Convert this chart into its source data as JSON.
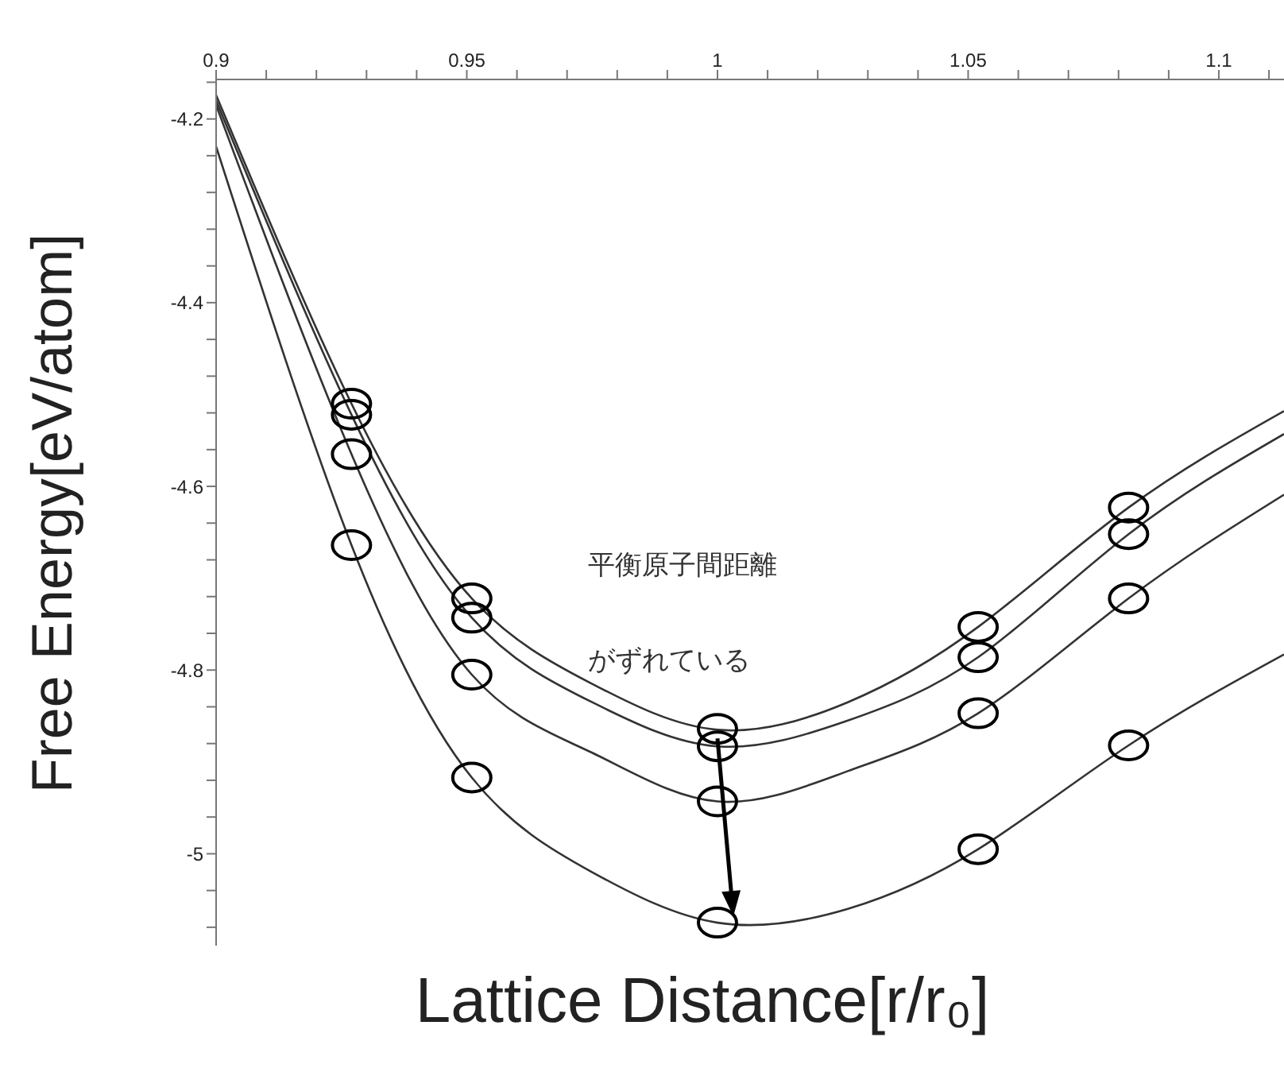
{
  "chart_data": {
    "type": "scatter",
    "xlabel": "Lattice Distance[r/r₀]",
    "ylabel": "Free Energy[eV/atom]",
    "xlim": [
      0.9,
      1.113
    ],
    "ylim": [
      -5.1,
      -4.157
    ],
    "xticks": [
      0.9,
      {
        "value": 0.91,
        "label": null
      },
      {
        "value": 0.92,
        "label": null
      },
      {
        "value": 0.93,
        "label": null
      },
      {
        "value": 0.94,
        "label": null
      },
      0.95,
      {
        "value": 0.96,
        "label": null
      },
      {
        "value": 0.97,
        "label": null
      },
      {
        "value": 0.98,
        "label": null
      },
      {
        "value": 0.99,
        "label": null
      },
      1,
      {
        "value": 1.01,
        "label": null
      },
      {
        "value": 1.02,
        "label": null
      },
      {
        "value": 1.03,
        "label": null
      },
      {
        "value": 1.04,
        "label": null
      },
      1.05,
      {
        "value": 1.06,
        "label": null
      },
      {
        "value": 1.07,
        "label": null
      },
      {
        "value": 1.08,
        "label": null
      },
      {
        "value": 1.09,
        "label": null
      },
      1.1,
      {
        "value": 1.11,
        "label": null
      }
    ],
    "yticks": [
      {
        "value": -5.08,
        "label": null
      },
      {
        "value": -5.04,
        "label": null
      },
      -5,
      {
        "value": -4.96,
        "label": null
      },
      {
        "value": -4.92,
        "label": null
      },
      {
        "value": -4.88,
        "label": null
      },
      {
        "value": -4.84,
        "label": null
      },
      -4.8,
      {
        "value": -4.76,
        "label": null
      },
      {
        "value": -4.72,
        "label": null
      },
      {
        "value": -4.68,
        "label": null
      },
      {
        "value": -4.64,
        "label": null
      },
      -4.6,
      {
        "value": -4.56,
        "label": null
      },
      {
        "value": -4.52,
        "label": null
      },
      {
        "value": -4.48,
        "label": null
      },
      {
        "value": -4.44,
        "label": null
      },
      -4.4,
      {
        "value": -4.36,
        "label": null
      },
      {
        "value": -4.32,
        "label": null
      },
      {
        "value": -4.28,
        "label": null
      },
      {
        "value": -4.24,
        "label": null
      },
      -4.2,
      {
        "value": -4.16,
        "label": null
      }
    ],
    "annotations": [
      "平衡原子間距離",
      "がずれている"
    ],
    "series": [
      {
        "type": "line",
        "color": "#333333",
        "marker": "none",
        "line_style": "solid",
        "x": [
          0.9,
          0.927,
          0.951,
          0.975,
          1.0,
          1.026,
          1.052,
          1.082,
          1.113
        ],
        "values": [
          -4.174,
          -4.51,
          -4.722,
          -4.815,
          -4.865,
          -4.835,
          -4.753,
          -4.623,
          -4.518
        ]
      },
      {
        "type": "line",
        "color": "#333333",
        "marker": "none",
        "line_style": "solid",
        "x": [
          0.9,
          0.927,
          0.951,
          0.975,
          1.0,
          1.026,
          1.052,
          1.082,
          1.113
        ],
        "values": [
          -4.18,
          -4.522,
          -4.743,
          -4.835,
          -4.883,
          -4.855,
          -4.786,
          -4.652,
          -4.543
        ]
      },
      {
        "type": "line",
        "color": "#333333",
        "marker": "none",
        "line_style": "solid",
        "x": [
          0.9,
          0.927,
          0.951,
          0.975,
          1.0,
          1.026,
          1.052,
          1.082,
          1.113
        ],
        "values": [
          -4.185,
          -4.565,
          -4.805,
          -4.89,
          -4.943,
          -4.91,
          -4.847,
          -4.722,
          -4.609
        ]
      },
      {
        "type": "line",
        "color": "#333333",
        "marker": "none",
        "line_style": "solid",
        "x": [
          0.9,
          0.927,
          0.951,
          0.975,
          1.0,
          1.026,
          1.052,
          1.082,
          1.113
        ],
        "values": [
          -4.23,
          -4.664,
          -4.917,
          -5.02,
          -5.075,
          -5.06,
          -4.995,
          -4.882,
          -4.783
        ]
      },
      {
        "color": "#000000",
        "marker": "circle",
        "x": [
          0.927,
          0.951,
          1.0,
          1.052,
          1.082
        ],
        "values": [
          -4.51,
          -4.722,
          -4.864,
          -4.753,
          -4.623
        ]
      },
      {
        "color": "#000000",
        "marker": "circle",
        "x": [
          0.927,
          0.951,
          1.0,
          1.052,
          1.082
        ],
        "values": [
          -4.522,
          -4.743,
          -4.883,
          -4.786,
          -4.652
        ]
      },
      {
        "color": "#000000",
        "marker": "circle",
        "x": [
          0.927,
          0.951,
          1.0,
          1.052,
          1.082
        ],
        "values": [
          -4.565,
          -4.805,
          -4.943,
          -4.847,
          -4.722
        ]
      },
      {
        "color": "#000000",
        "marker": "circle",
        "x": [
          0.927,
          0.951,
          1.0,
          1.052,
          1.082
        ],
        "values": [
          -4.664,
          -4.917,
          -5.075,
          -4.995,
          -4.882
        ]
      }
    ]
  }
}
